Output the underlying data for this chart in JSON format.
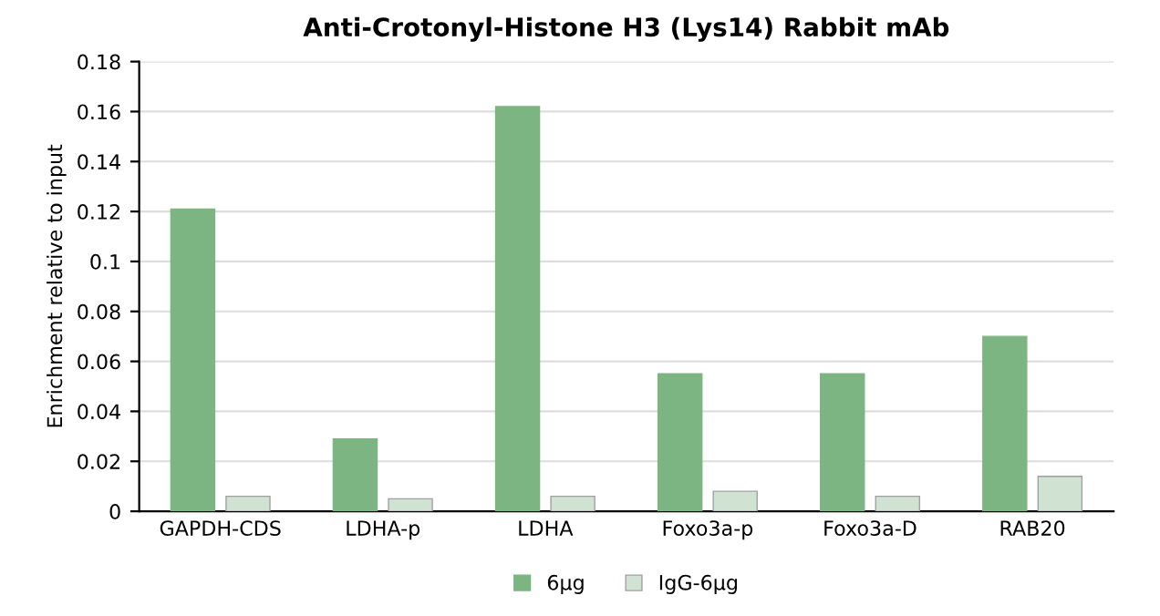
{
  "chart_data": {
    "type": "bar",
    "title": "Anti-Crotonyl-Histone H3 (Lys14) Rabbit mAb",
    "ylabel": "Enrichment relative to input",
    "categories": [
      "GAPDH-CDS",
      "LDHA-p",
      "LDHA",
      "Foxo3a-p",
      "Foxo3a-D",
      "RAB20"
    ],
    "series": [
      {
        "name": "6μg",
        "color": "#7db582",
        "values": [
          0.121,
          0.029,
          0.162,
          0.055,
          0.055,
          0.07
        ]
      },
      {
        "name": "IgG-6μg",
        "color": "#d0e3d2",
        "values": [
          0.006,
          0.005,
          0.006,
          0.008,
          0.006,
          0.014
        ]
      }
    ],
    "ylim": [
      0,
      0.18
    ],
    "yticks": [
      0,
      0.02,
      0.04,
      0.06,
      0.08,
      0.1,
      0.12,
      0.14,
      0.16,
      0.18
    ],
    "grid": "y",
    "legend": "bottom"
  }
}
